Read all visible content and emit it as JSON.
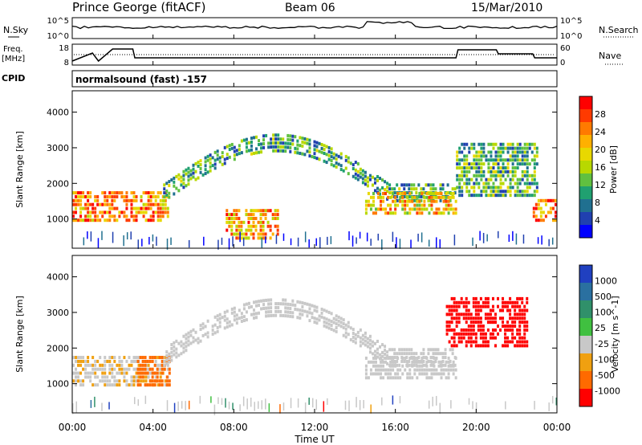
{
  "header": {
    "station": "Prince George (fitACF)",
    "beam": "Beam 06",
    "date": "15/Mar/2010"
  },
  "strips": {
    "nsky_label": "N.Sky",
    "nsearch_label": "N.Search",
    "freq_label": "Freq.",
    "freq_unit": "[MHz]",
    "nave_label": "Nave",
    "cpid_label": "CPID",
    "cpid_value": "normalsound (fast) -157",
    "nsky_ticks": [
      "10^5",
      "10^0"
    ],
    "nsearch_ticks": [
      "10^5",
      "10^0"
    ],
    "freq_ticks": [
      "18",
      "8"
    ],
    "nave_ticks": [
      "60",
      "0"
    ]
  },
  "colorbars": {
    "power": {
      "label": "Power [dB]",
      "ticks": [
        "28",
        "24",
        "20",
        "16",
        "12",
        "8",
        "4"
      ],
      "colors": [
        "#ff0000",
        "#ff3a00",
        "#ff7a00",
        "#ffb000",
        "#e8d800",
        "#b8d800",
        "#60c040",
        "#20a070",
        "#207090",
        "#2040b0",
        "#0000ff"
      ]
    },
    "velocity": {
      "label": "Velocity [m s^-1]",
      "ticks": [
        "1000",
        "500",
        "100",
        "25",
        "-25",
        "-100",
        "-500",
        "-1000"
      ],
      "colors": [
        "#2040c0",
        "#2a70a0",
        "#30906a",
        "#40c040",
        "#c8c8c8",
        "#f0a010",
        "#ff6a00",
        "#ff0000"
      ]
    }
  },
  "chart_data": [
    {
      "type": "heatmap",
      "title": "Power",
      "xlabel": "Time UT",
      "ylabel": "Slant Range [km]",
      "xlim": [
        0,
        24
      ],
      "ylim": [
        180,
        4600
      ],
      "x_ticks": [
        "00:00",
        "04:00",
        "08:00",
        "12:00",
        "16:00",
        "20:00",
        "00:00"
      ],
      "y_ticks": [
        1000,
        2000,
        3000,
        4000
      ],
      "bands": [
        {
          "name": "early band",
          "t": [
            0.0,
            4.8
          ],
          "range": [
            900,
            1700
          ],
          "level": 22
        },
        {
          "name": "main arc",
          "t": [
            4.5,
            19.0
          ],
          "range_start": [
            1700,
            3100
          ],
          "level": 9
        },
        {
          "name": "lower band",
          "t": [
            14.5,
            19.0
          ],
          "range": [
            1100,
            1700
          ],
          "level": 18
        },
        {
          "name": "near range",
          "t": [
            7.6,
            10.2
          ],
          "range": [
            400,
            1200
          ],
          "level": 20
        },
        {
          "name": "late patches",
          "t": [
            19.0,
            23.0
          ],
          "range": [
            1600,
            3100
          ],
          "level": 10
        },
        {
          "name": "end band",
          "t": [
            22.8,
            24.0
          ],
          "range": [
            900,
            1500
          ],
          "level": 24
        }
      ]
    },
    {
      "type": "heatmap",
      "title": "Velocity",
      "xlabel": "Time UT",
      "ylabel": "Slant Range [km]",
      "xlim": [
        0,
        24
      ],
      "ylim": [
        180,
        4600
      ],
      "x_ticks": [
        "00:00",
        "04:00",
        "08:00",
        "12:00",
        "16:00",
        "20:00",
        "00:00"
      ],
      "y_ticks": [
        1000,
        2000,
        3000,
        4000
      ],
      "bands": [
        {
          "name": "early band",
          "t": [
            0.0,
            4.8
          ],
          "range": [
            900,
            1700
          ],
          "vel": -30
        },
        {
          "name": "orange patch",
          "t": [
            3.2,
            4.8
          ],
          "range": [
            900,
            1700
          ],
          "vel": -200
        },
        {
          "name": "main arc",
          "t": [
            4.5,
            19.0
          ],
          "range_start": [
            1700,
            3100
          ],
          "vel": 0
        },
        {
          "name": "lower band",
          "t": [
            14.5,
            19.0
          ],
          "range": [
            1100,
            1700
          ],
          "vel": 0
        },
        {
          "name": "red patches",
          "t": [
            18.5,
            22.5
          ],
          "range": [
            2000,
            3400
          ],
          "vel": -600
        }
      ]
    }
  ]
}
